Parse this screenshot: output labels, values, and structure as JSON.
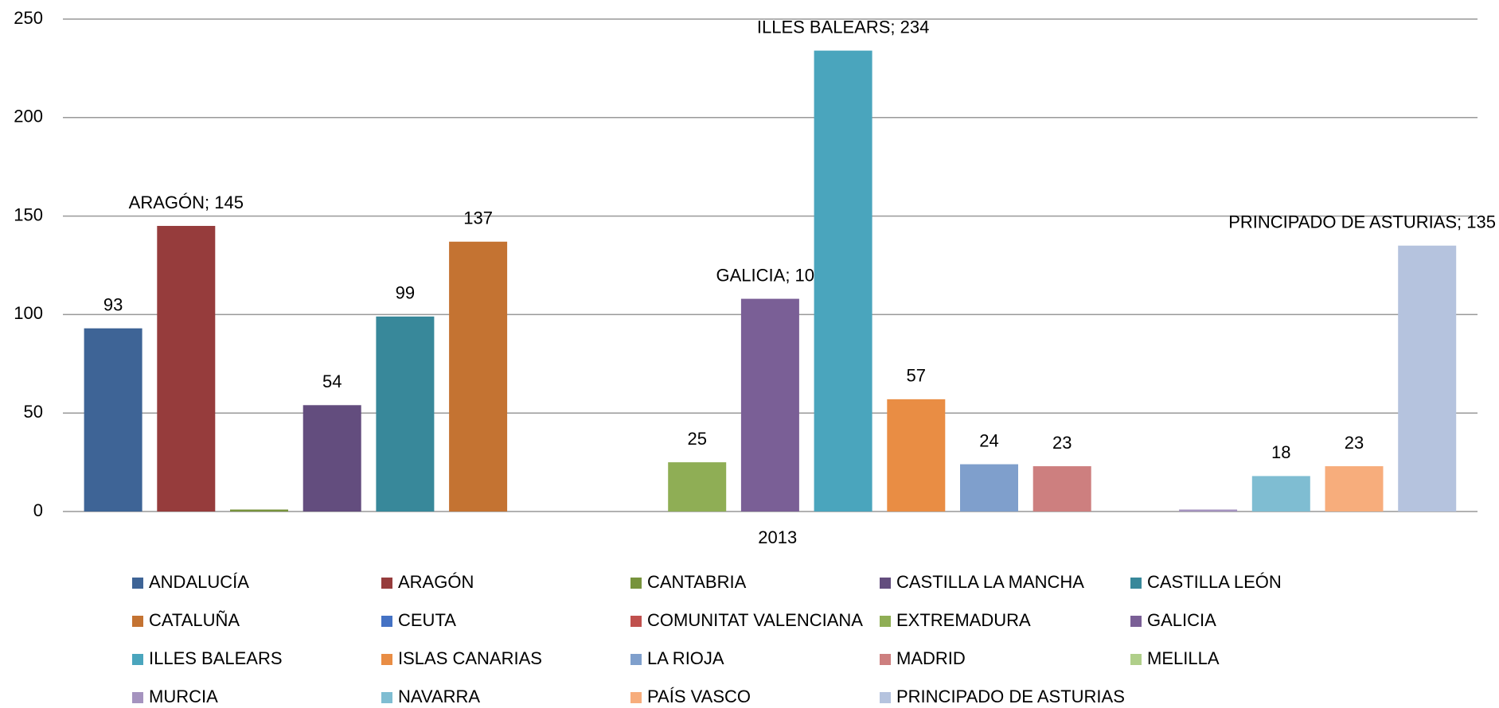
{
  "chart_data": {
    "type": "bar",
    "categories": [
      "2013"
    ],
    "ylim": [
      0,
      250
    ],
    "yticks": [
      0,
      50,
      100,
      150,
      200,
      250
    ],
    "grid": true,
    "legend": "bottom",
    "series": [
      {
        "name": "ANDALUCÍA",
        "color": "#3e6496",
        "values": [
          93
        ]
      },
      {
        "name": "ARAGÓN",
        "color": "#963c3c",
        "values": [
          145
        ],
        "value_labels": [
          "ARAGÓN; 145"
        ]
      },
      {
        "name": "CANTABRIA",
        "color": "#77933c",
        "values": [
          1
        ],
        "value_labels": [
          null
        ]
      },
      {
        "name": "CASTILLA LA MANCHA",
        "color": "#634d7e",
        "values": [
          54
        ]
      },
      {
        "name": "CASTILLA LEÓN",
        "color": "#38889a",
        "values": [
          99
        ]
      },
      {
        "name": "CATALUÑA",
        "color": "#c47332",
        "values": [
          137
        ]
      },
      {
        "name": "CEUTA",
        "color": "#4472c4",
        "values": [
          0
        ],
        "value_labels": [
          null
        ]
      },
      {
        "name": "COMUNITAT VALENCIANA",
        "color": "#c0504d",
        "values": [
          0
        ],
        "value_labels": [
          null
        ]
      },
      {
        "name": "EXTREMADURA",
        "color": "#8fae55",
        "values": [
          25
        ]
      },
      {
        "name": "GALICIA",
        "color": "#7a5f96",
        "values": [
          108
        ],
        "value_labels": [
          "GALICIA; 108"
        ]
      },
      {
        "name": "ILLES BALEARS",
        "color": "#4aa5bd",
        "values": [
          234
        ],
        "value_labels": [
          "ILLES BALEARS; 234"
        ]
      },
      {
        "name": "ISLAS CANARIAS",
        "color": "#e98d44",
        "values": [
          57
        ]
      },
      {
        "name": "LA RIOJA",
        "color": "#7f9fcc",
        "values": [
          24
        ]
      },
      {
        "name": "MADRID",
        "color": "#cd7f7f",
        "values": [
          23
        ]
      },
      {
        "name": "MELILLA",
        "color": "#b0cf8a",
        "values": [
          0
        ],
        "value_labels": [
          null
        ]
      },
      {
        "name": "MURCIA",
        "color": "#a593bf",
        "values": [
          1
        ],
        "value_labels": [
          null
        ]
      },
      {
        "name": "NAVARRA",
        "color": "#7fbdd2",
        "values": [
          18
        ]
      },
      {
        "name": "PAÍS VASCO",
        "color": "#f7ad7c",
        "values": [
          23
        ]
      },
      {
        "name": "PRINCIPADO DE ASTURIAS",
        "color": "#b5c3de",
        "values": [
          135
        ],
        "value_labels": [
          "PRINCIPADO DE ASTURIAS; 135"
        ]
      }
    ]
  }
}
